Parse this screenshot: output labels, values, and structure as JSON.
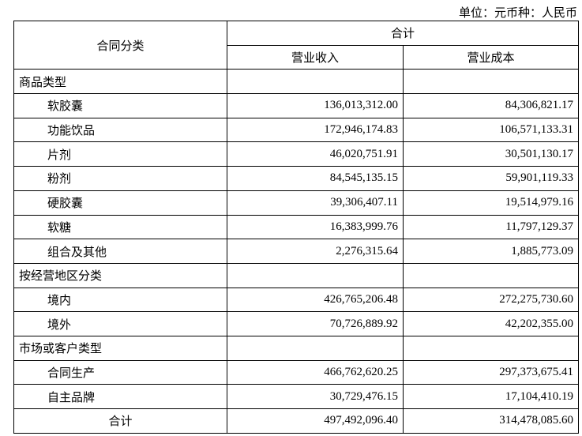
{
  "header": {
    "unit": "单位：元币种：人民币"
  },
  "table": {
    "category_header": "合同分类",
    "group_header": "合计",
    "columns": [
      "营业收入",
      "营业成本"
    ],
    "sections": [
      {
        "title": "商品类型",
        "rows": [
          [
            "软胶囊",
            "136,013,312.00",
            "84,306,821.17"
          ],
          [
            "功能饮品",
            "172,946,174.83",
            "106,571,133.31"
          ],
          [
            "片剂",
            "46,020,751.91",
            "30,501,130.17"
          ],
          [
            "粉剂",
            "84,545,135.15",
            "59,901,119.33"
          ],
          [
            "硬胶囊",
            "39,306,407.11",
            "19,514,979.16"
          ],
          [
            "软糖",
            "16,383,999.76",
            "11,797,129.37"
          ],
          [
            "组合及其他",
            "2,276,315.64",
            "1,885,773.09"
          ]
        ]
      },
      {
        "title": "按经营地区分类",
        "rows": [
          [
            "境内",
            "426,765,206.48",
            "272,275,730.60"
          ],
          [
            "境外",
            "70,726,889.92",
            "42,202,355.00"
          ]
        ]
      },
      {
        "title": "市场或客户类型",
        "rows": [
          [
            "合同生产",
            "466,762,620.25",
            "297,373,675.41"
          ],
          [
            "自主品牌",
            "30,729,476.15",
            "17,104,410.19"
          ]
        ]
      }
    ],
    "total": [
      "合计",
      "497,492,096.40",
      "314,478,085.60"
    ]
  }
}
